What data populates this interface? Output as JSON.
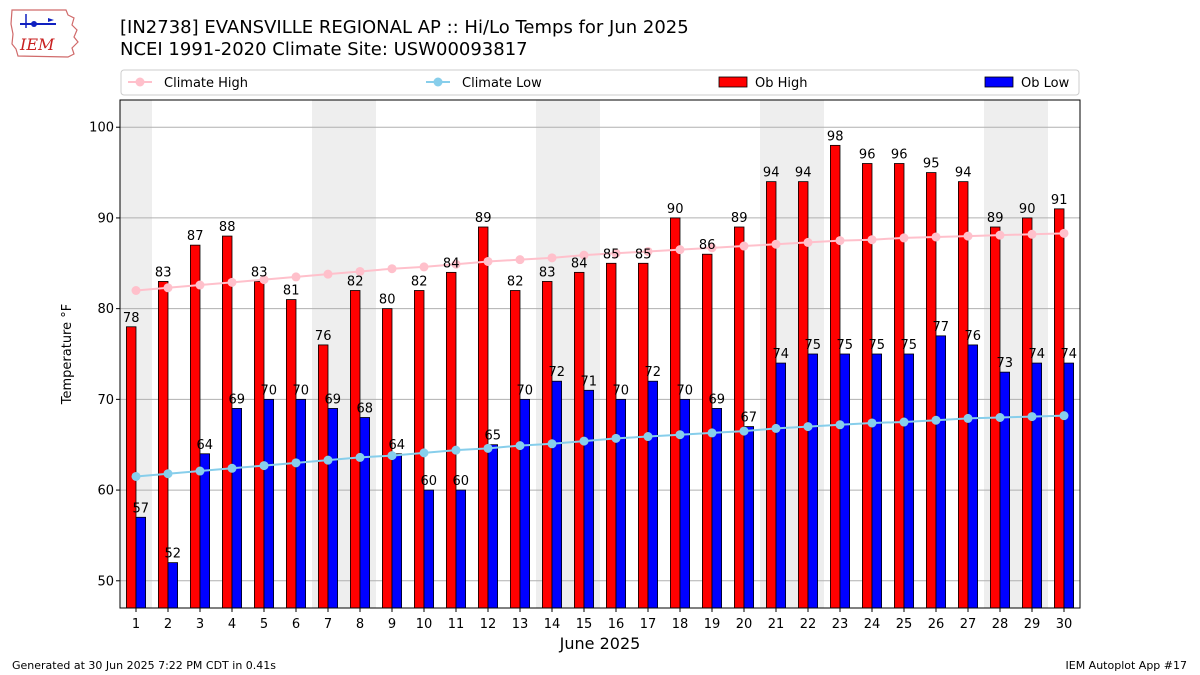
{
  "header": {
    "logo_text": "IEM",
    "title": "[IN2738] EVANSVILLE REGIONAL AP :: Hi/Lo Temps for Jun 2025",
    "subtitle": "NCEI 1991-2020 Climate Site: USW00093817"
  },
  "footer": {
    "generated": "Generated at 30 Jun 2025 7:22 PM CDT in 0.41s",
    "app": "IEM Autoplot App #17"
  },
  "colors": {
    "ob_high": "#ff0000",
    "ob_low": "#0000ff",
    "climate_high": "#ffc0cb",
    "climate_low": "#87ceeb",
    "weekend_band": "#eeeeee",
    "grid": "#b0b0b0"
  },
  "chart_data": {
    "type": "bar",
    "title": "[IN2738] EVANSVILLE REGIONAL AP :: Hi/Lo Temps for Jun 2025",
    "subtitle": "NCEI 1991-2020 Climate Site: USW00093817",
    "xlabel": "June 2025",
    "ylabel": "Temperature °F",
    "ylim": [
      47,
      103
    ],
    "yticks": [
      50,
      60,
      70,
      80,
      90,
      100
    ],
    "grid": true,
    "legend_placement": "top",
    "categories": [
      "1",
      "2",
      "3",
      "4",
      "5",
      "6",
      "7",
      "8",
      "9",
      "10",
      "11",
      "12",
      "13",
      "14",
      "15",
      "16",
      "17",
      "18",
      "19",
      "20",
      "21",
      "22",
      "23",
      "24",
      "25",
      "26",
      "27",
      "28",
      "29",
      "30"
    ],
    "weekend_days": [
      1,
      7,
      8,
      14,
      15,
      21,
      22,
      28,
      29
    ],
    "series": [
      {
        "name": "Climate High",
        "kind": "line",
        "values": [
          82.0,
          82.3,
          82.6,
          82.9,
          83.2,
          83.5,
          83.8,
          84.1,
          84.4,
          84.6,
          84.9,
          85.2,
          85.4,
          85.6,
          85.9,
          86.1,
          86.3,
          86.5,
          86.7,
          86.9,
          87.1,
          87.3,
          87.5,
          87.6,
          87.8,
          87.9,
          88.0,
          88.1,
          88.2,
          88.3
        ]
      },
      {
        "name": "Climate Low",
        "kind": "line",
        "values": [
          61.5,
          61.8,
          62.1,
          62.4,
          62.7,
          63.0,
          63.3,
          63.6,
          63.8,
          64.1,
          64.4,
          64.6,
          64.9,
          65.1,
          65.4,
          65.7,
          65.9,
          66.1,
          66.3,
          66.5,
          66.8,
          67.0,
          67.2,
          67.4,
          67.5,
          67.7,
          67.9,
          68.0,
          68.1,
          68.2
        ]
      },
      {
        "name": "Ob High",
        "kind": "bar",
        "values": [
          78,
          83,
          87,
          88,
          83,
          81,
          76,
          82,
          80,
          82,
          84,
          89,
          82,
          83,
          84,
          85,
          85,
          90,
          86,
          89,
          94,
          94,
          98,
          96,
          96,
          95,
          94,
          89,
          90,
          91
        ]
      },
      {
        "name": "Ob Low",
        "kind": "bar",
        "values": [
          57,
          52,
          64,
          69,
          70,
          70,
          69,
          68,
          64,
          60,
          60,
          65,
          70,
          72,
          71,
          70,
          72,
          70,
          69,
          67,
          74,
          75,
          75,
          75,
          75,
          77,
          76,
          73,
          74,
          74
        ]
      }
    ]
  }
}
